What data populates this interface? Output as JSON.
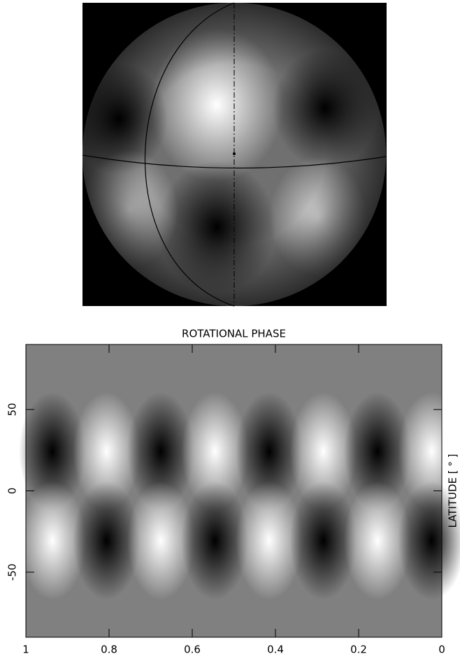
{
  "chart_data": {
    "type": "heatmap",
    "x_label": "ROTATIONAL PHASE",
    "y_label": "LATITUDE [ ° ]",
    "xlim": [
      1,
      0
    ],
    "xticks": [
      1,
      0.8,
      0.6,
      0.4,
      0.2,
      0
    ],
    "ylim": [
      -90,
      90
    ],
    "yticks": [
      -50,
      0,
      50
    ]
  }
}
